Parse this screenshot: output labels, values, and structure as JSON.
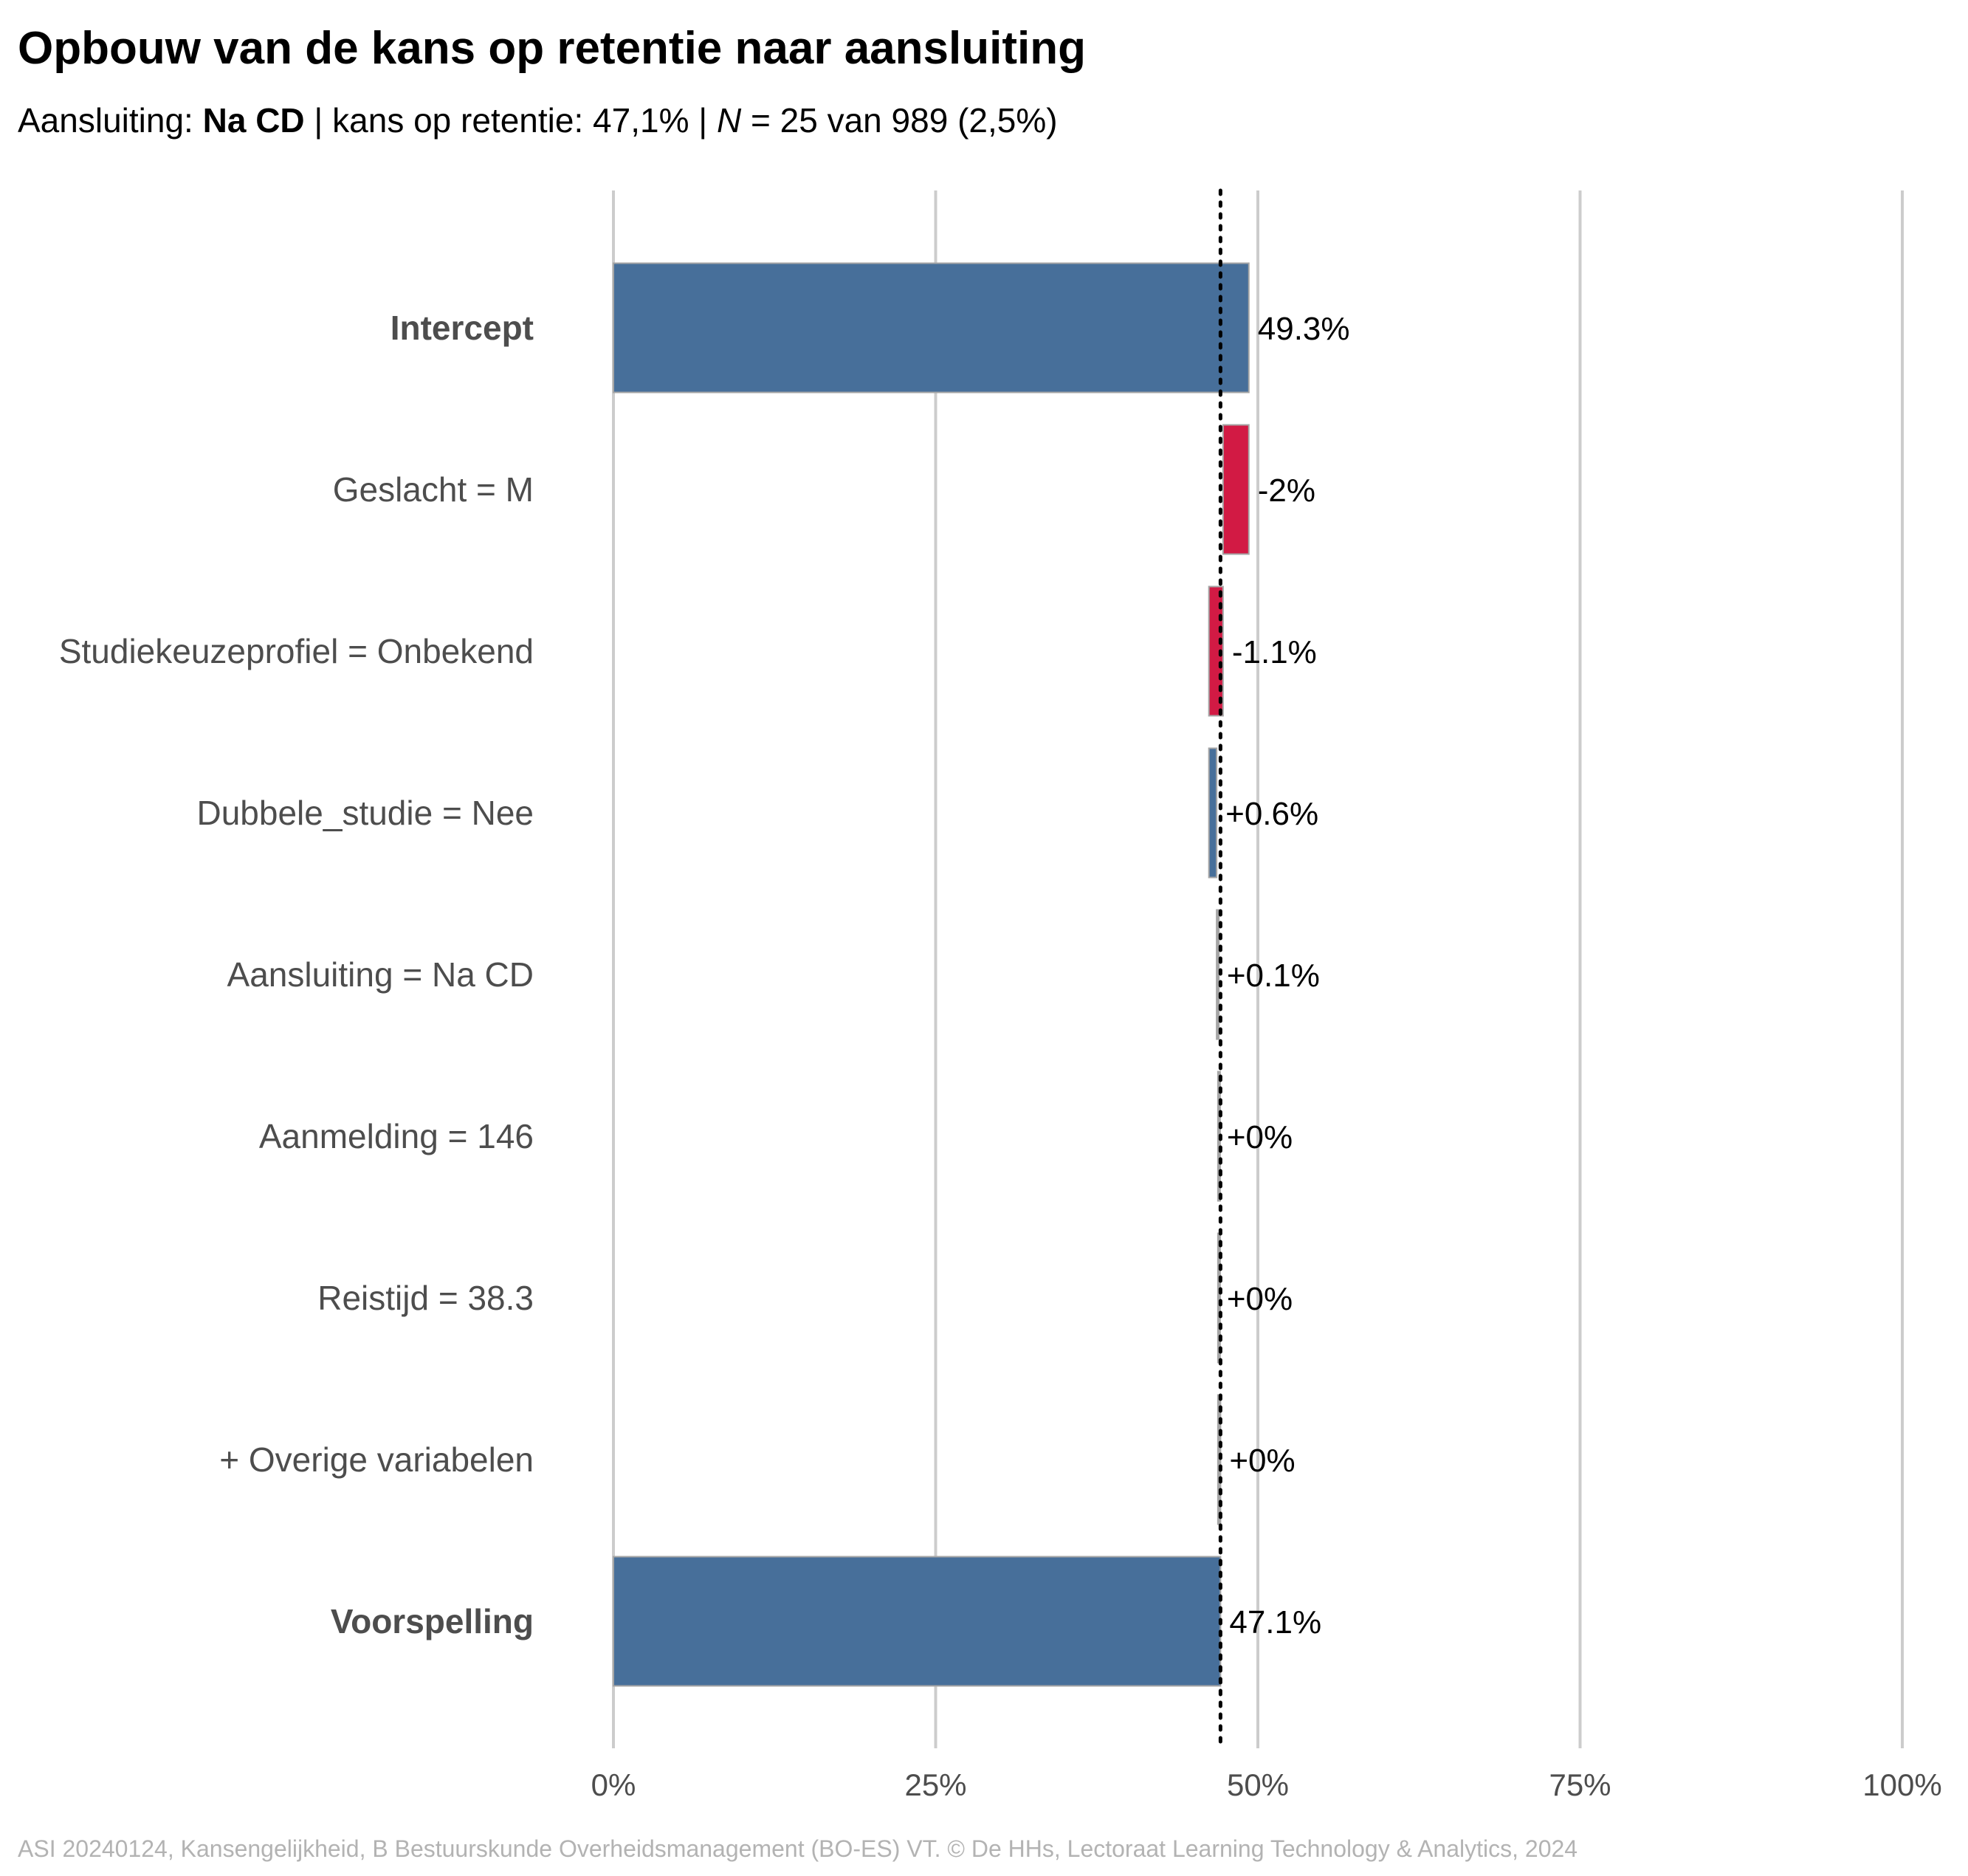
{
  "title": "Opbouw van de kans op retentie naar aansluiting",
  "subtitle": {
    "prefix": "Aansluiting: ",
    "group": "Na CD",
    "middle": " | kans op retentie: 47,1% | ",
    "n_symbol": "N",
    "suffix": " = 25 van 989 (2,5%)"
  },
  "caption": "ASI 20240124, Kansengelijkheid, B Bestuurskunde Overheidsmanagement (BO-ES) VT. © De HHs, Lectoraat Learning Technology & Analytics, 2024",
  "colors": {
    "positive": "#476f9a",
    "negative": "#d21a44",
    "neutral": "#a6a6a6",
    "grid": "#cccccc",
    "reference_line": "#000000"
  },
  "chart_data": {
    "type": "bar",
    "orientation": "horizontal",
    "subtype": "waterfall",
    "xlim": [
      0,
      100
    ],
    "x_ticks": [
      0,
      25,
      50,
      75,
      100
    ],
    "x_tick_labels": [
      "0%",
      "25%",
      "50%",
      "75%",
      "100%"
    ],
    "grid": true,
    "reference_line": 47.1,
    "bars": [
      {
        "label": "Intercept",
        "bold": true,
        "start": 0,
        "end": 49.3,
        "value_label": "49.3%",
        "color": "positive"
      },
      {
        "label": "Geslacht = M",
        "bold": false,
        "start": 49.3,
        "end": 47.3,
        "value_label": "-2%",
        "color": "negative"
      },
      {
        "label": "Studiekeuzeprofiel = Onbekend",
        "bold": false,
        "start": 47.3,
        "end": 46.2,
        "value_label": "-1.1%",
        "color": "negative"
      },
      {
        "label": "Dubbele_studie = Nee",
        "bold": false,
        "start": 46.2,
        "end": 46.8,
        "value_label": "+0.6%",
        "color": "positive"
      },
      {
        "label": "Aansluiting = Na CD",
        "bold": false,
        "start": 46.8,
        "end": 46.9,
        "value_label": "+0.1%",
        "color": "neutral"
      },
      {
        "label": "Aanmelding = 146",
        "bold": false,
        "start": 46.9,
        "end": 46.9,
        "value_label": "+0%",
        "color": "neutral"
      },
      {
        "label": "Reistijd = 38.3",
        "bold": false,
        "start": 46.9,
        "end": 46.9,
        "value_label": "+0%",
        "color": "neutral"
      },
      {
        "label": "+ Overige variabelen",
        "bold": false,
        "start": 46.9,
        "end": 47.1,
        "value_label": "+0%",
        "color": "neutral"
      },
      {
        "label": "Voorspelling",
        "bold": true,
        "start": 0,
        "end": 47.1,
        "value_label": "47.1%",
        "color": "positive"
      }
    ]
  }
}
